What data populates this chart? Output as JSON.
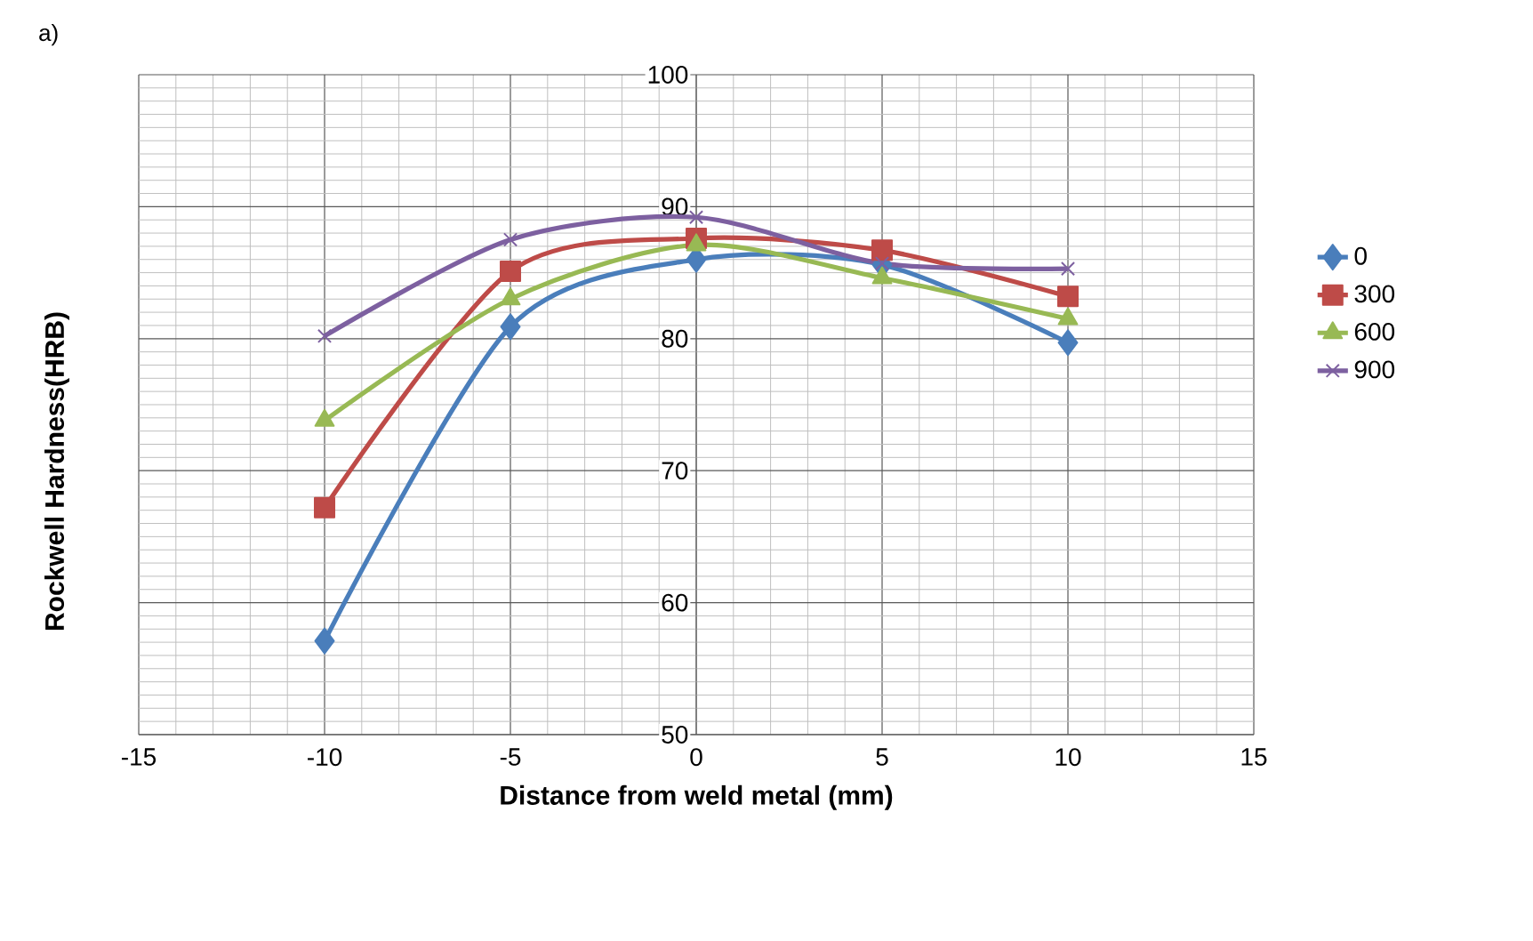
{
  "chart_data": {
    "type": "line",
    "xlabel": "Distance from weld metal (mm)",
    "ylabel": "Rockwell Hardness(HRB)",
    "annotations": [
      "a)"
    ],
    "x": [
      -10,
      -5,
      0,
      5,
      10
    ],
    "series": [
      {
        "name": "0",
        "color": "#4a7ebb",
        "marker": "diamond",
        "values": [
          57.1,
          80.9,
          86,
          85.6,
          79.7
        ]
      },
      {
        "name": "300",
        "color": "#be4b48",
        "marker": "square",
        "values": [
          67.2,
          85.1,
          87.6,
          86.7,
          83.2
        ]
      },
      {
        "name": "600",
        "color": "#98b954",
        "marker": "triangle",
        "values": [
          73.8,
          83,
          87.1,
          84.6,
          81.5
        ]
      },
      {
        "name": "900",
        "color": "#7d60a0",
        "marker": "cross",
        "values": [
          80.2,
          87.5,
          89.2,
          85.7,
          85.3
        ]
      }
    ],
    "xlim": [
      -15,
      15
    ],
    "ylim": [
      50,
      100
    ],
    "xticks": [
      -15,
      -10,
      -5,
      0,
      5,
      10,
      15
    ],
    "yticks": [
      50,
      60,
      70,
      80,
      90,
      100
    ],
    "grid": true,
    "legend": "right"
  }
}
